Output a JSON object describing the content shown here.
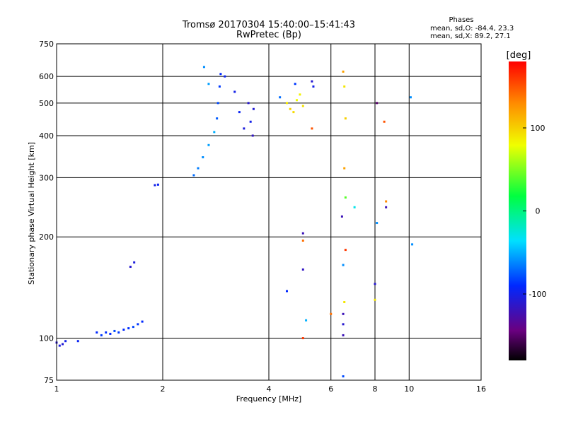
{
  "chart_data": {
    "type": "scatter",
    "title": "Tromsø 20170304 15:40:00–15:41:43",
    "subtitle": "RwPretec (Bp)",
    "xlabel": "Frequency [MHz]",
    "ylabel": "Stationary phase Virtual Height [km]",
    "x_scale": "log",
    "y_scale": "log",
    "xlim": [
      1,
      16
    ],
    "ylim": [
      75,
      750
    ],
    "x_ticks": [
      1,
      2,
      4,
      6,
      8,
      10,
      16
    ],
    "y_ticks": [
      75,
      100,
      200,
      300,
      400,
      500,
      600,
      750
    ],
    "grid": true,
    "phases_box": {
      "heading": "Phases",
      "line_o": "mean, sd,O: -84.4, 23.3",
      "line_x": "mean, sd,X: 89.2, 27.1"
    },
    "colorbar": {
      "label": "[deg]",
      "ticks": [
        100,
        0,
        -100
      ],
      "range": [
        -180,
        180
      ],
      "colormap": "rainbow (black → purple → blue → cyan → green → yellow → orange → red)"
    },
    "series": [
      {
        "points": [
          [
            1.0,
            97,
            -110
          ],
          [
            1.02,
            95,
            -105
          ],
          [
            1.04,
            96,
            -108
          ],
          [
            1.06,
            98,
            -100
          ],
          [
            1.15,
            98,
            -95
          ],
          [
            1.3,
            104,
            -90
          ],
          [
            1.34,
            102,
            -85
          ],
          [
            1.38,
            104,
            -88
          ],
          [
            1.42,
            103,
            -92
          ],
          [
            1.46,
            105,
            -80
          ],
          [
            1.5,
            104,
            -85
          ],
          [
            1.55,
            106,
            -90
          ],
          [
            1.6,
            107,
            -88
          ],
          [
            1.65,
            108,
            -82
          ],
          [
            1.7,
            110,
            -86
          ],
          [
            1.75,
            112,
            -90
          ],
          [
            1.62,
            163,
            -110
          ],
          [
            1.66,
            168,
            -105
          ],
          [
            1.9,
            285,
            -100
          ],
          [
            1.94,
            286,
            -95
          ],
          [
            2.45,
            305,
            -70
          ],
          [
            2.52,
            320,
            -65
          ],
          [
            2.6,
            345,
            -60
          ],
          [
            2.7,
            375,
            -55
          ],
          [
            2.8,
            410,
            -50
          ],
          [
            2.85,
            450,
            -75
          ],
          [
            2.87,
            500,
            -80
          ],
          [
            2.9,
            560,
            -85
          ],
          [
            2.92,
            610,
            -90
          ],
          [
            2.62,
            640,
            -60
          ],
          [
            2.7,
            570,
            -55
          ],
          [
            3.0,
            600,
            -95
          ],
          [
            3.2,
            540,
            -100
          ],
          [
            3.3,
            470,
            -95
          ],
          [
            3.4,
            420,
            -105
          ],
          [
            3.5,
            500,
            -110
          ],
          [
            3.55,
            440,
            -100
          ],
          [
            3.6,
            400,
            -115
          ],
          [
            3.62,
            480,
            -108
          ],
          [
            4.3,
            520,
            -70
          ],
          [
            4.5,
            500,
            90
          ],
          [
            4.6,
            480,
            100
          ],
          [
            4.7,
            470,
            95
          ],
          [
            4.8,
            510,
            80
          ],
          [
            4.9,
            530,
            85
          ],
          [
            5.0,
            490,
            92
          ],
          [
            4.75,
            570,
            -85
          ],
          [
            5.3,
            580,
            -110
          ],
          [
            5.35,
            560,
            -100
          ],
          [
            5.3,
            420,
            150
          ],
          [
            5.0,
            205,
            -120
          ],
          [
            5.0,
            195,
            140
          ],
          [
            5.0,
            160,
            -115
          ],
          [
            5.0,
            100,
            160
          ],
          [
            4.5,
            138,
            -90
          ],
          [
            5.1,
            113,
            -50
          ],
          [
            6.0,
            118,
            140
          ],
          [
            6.5,
            620,
            120
          ],
          [
            6.55,
            560,
            90
          ],
          [
            6.6,
            450,
            100
          ],
          [
            6.55,
            320,
            120
          ],
          [
            6.6,
            262,
            40
          ],
          [
            6.45,
            230,
            -120
          ],
          [
            6.6,
            183,
            160
          ],
          [
            6.5,
            165,
            -60
          ],
          [
            6.55,
            128,
            90
          ],
          [
            6.5,
            118,
            -120
          ],
          [
            6.5,
            110,
            -110
          ],
          [
            6.5,
            102,
            -120
          ],
          [
            6.5,
            77,
            -80
          ],
          [
            7.0,
            245,
            -30
          ],
          [
            8.1,
            500,
            -150
          ],
          [
            8.5,
            440,
            150
          ],
          [
            8.6,
            255,
            130
          ],
          [
            8.6,
            245,
            -120
          ],
          [
            8.1,
            220,
            -60
          ],
          [
            8.0,
            145,
            -110
          ],
          [
            8.0,
            130,
            90
          ],
          [
            10.1,
            520,
            -60
          ],
          [
            10.2,
            190,
            -60
          ]
        ]
      }
    ]
  }
}
